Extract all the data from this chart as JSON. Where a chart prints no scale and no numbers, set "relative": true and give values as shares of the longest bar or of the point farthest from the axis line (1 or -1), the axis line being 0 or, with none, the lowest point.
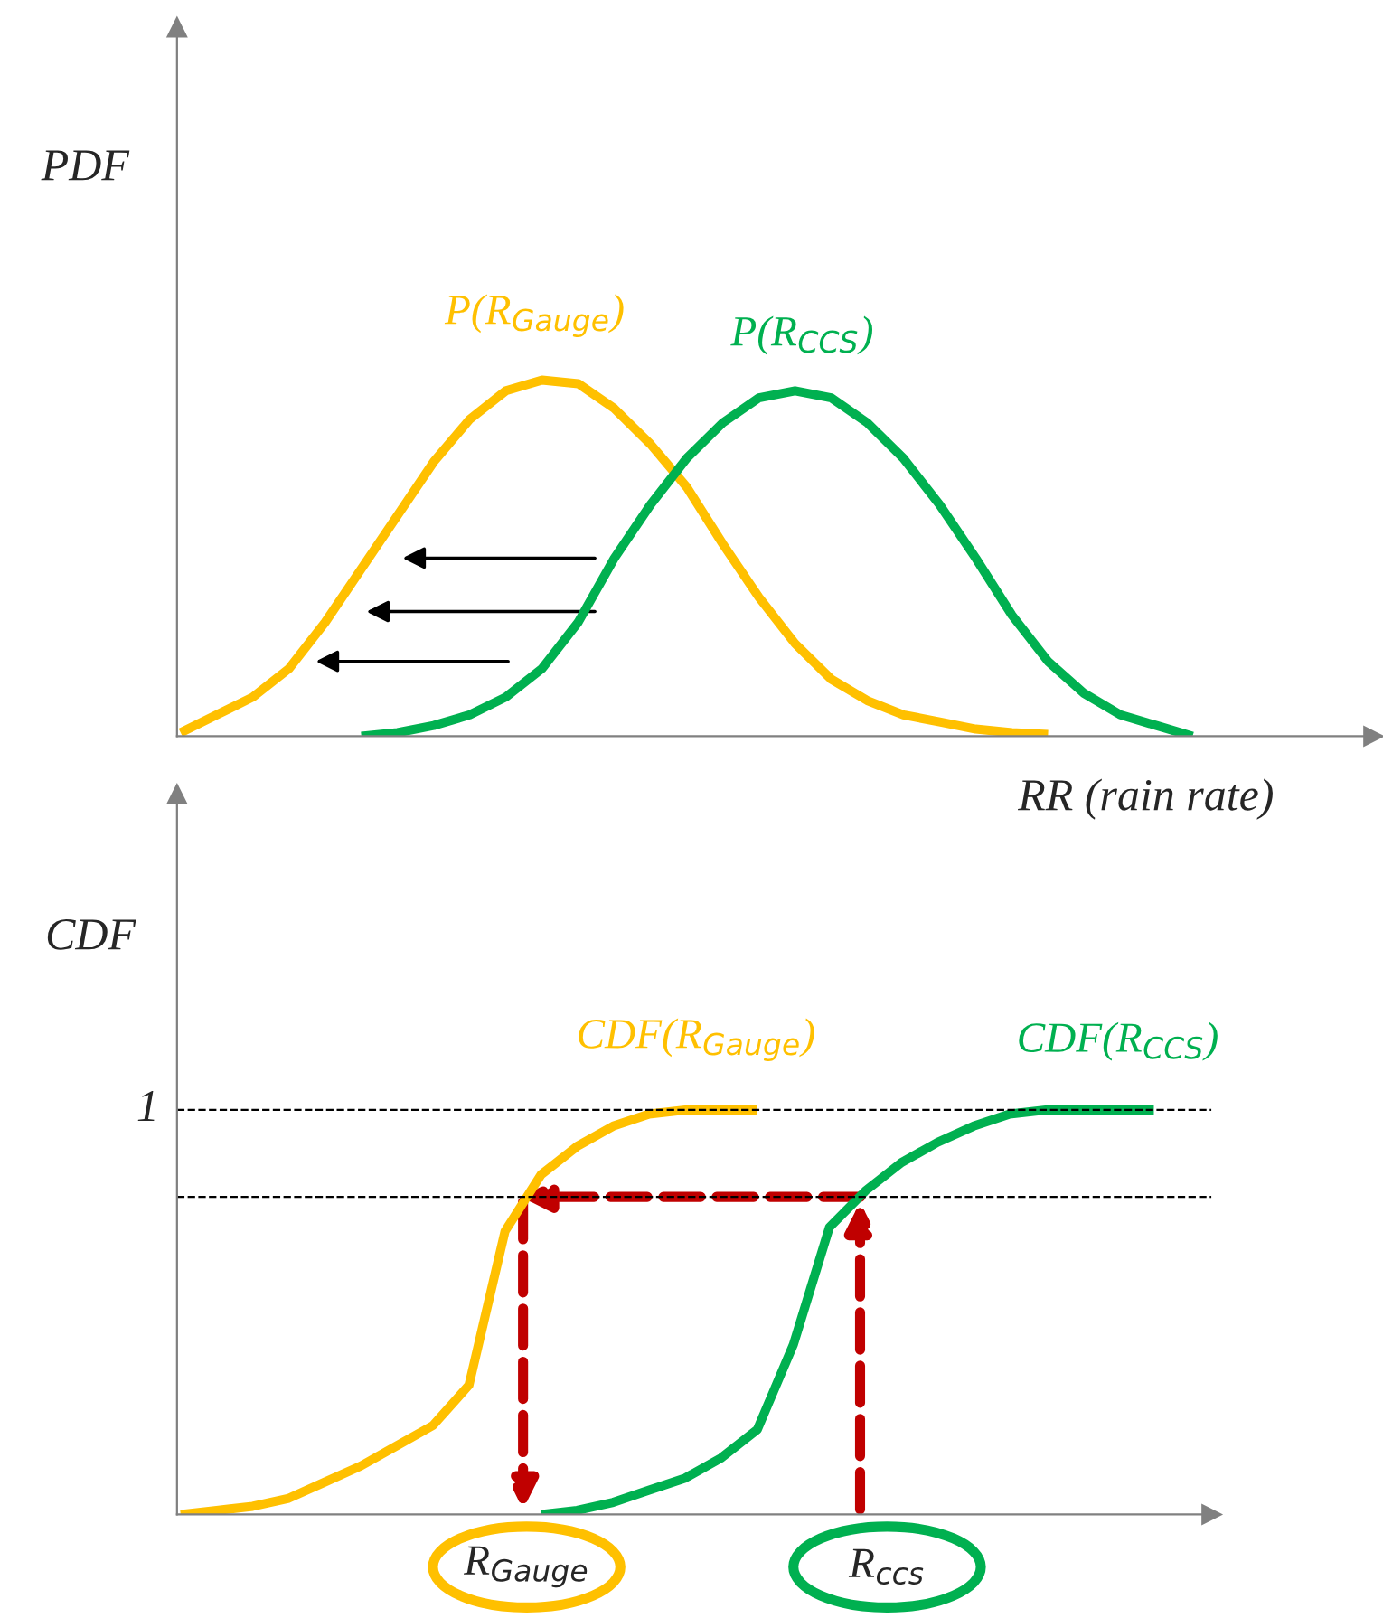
{
  "chart_data": [
    {
      "type": "line",
      "relative": true,
      "ylabel": "PDF",
      "xlabel": "RR (rain rate)",
      "legend": false,
      "line_style": "solid",
      "marker": "none",
      "categories": [
        null,
        null,
        null,
        null,
        null,
        null,
        null,
        null,
        null,
        null,
        null,
        null,
        null,
        null,
        null,
        null,
        null,
        null,
        null,
        null,
        null,
        null,
        null,
        null,
        null,
        null,
        null,
        null,
        null
      ],
      "series": [
        {
          "name": "P(R$_{Gauge}$)",
          "color": "#ffc000",
          "values": [
            0.01,
            0.06,
            0.11,
            0.19,
            0.32,
            0.47,
            0.62,
            0.77,
            0.89,
            0.97,
            1.0,
            0.99,
            0.92,
            0.82,
            0.7,
            0.54,
            0.39,
            0.26,
            0.16,
            0.1,
            0.06,
            0.04,
            0.02,
            0.01,
            0.005,
            null,
            null,
            null,
            null
          ]
        },
        {
          "name": "P(R$_{CCS}$)",
          "color": "#00b050",
          "values": [
            null,
            null,
            null,
            null,
            null,
            0.0,
            0.01,
            0.03,
            0.06,
            0.11,
            0.19,
            0.32,
            0.5,
            0.65,
            0.78,
            0.88,
            0.95,
            0.97,
            0.95,
            0.88,
            0.78,
            0.65,
            0.5,
            0.34,
            0.21,
            0.12,
            0.06,
            0.03,
            0.0
          ]
        }
      ]
    },
    {
      "type": "line",
      "relative": true,
      "ylabel": "CDF",
      "legend": false,
      "line_style": "solid",
      "marker": "none",
      "categories": [
        null,
        null,
        null,
        null,
        null,
        null,
        null,
        null,
        null,
        null,
        null,
        null,
        null,
        null,
        null,
        null,
        null,
        null,
        null,
        null,
        null,
        null,
        null,
        null,
        null,
        null,
        null,
        null,
        null
      ],
      "ref_lines": [
        {
          "axis": "y",
          "value": 1,
          "label": "1",
          "line_style": "dashed",
          "color": "#000000"
        },
        {
          "axis": "y",
          "value": 0.785,
          "label": null,
          "line_style": "dashed",
          "color": "#000000"
        }
      ],
      "annotations": [
        "R$_{Gauge}$",
        "R$_{ccs}$"
      ],
      "series": [
        {
          "name": "CDF(R$_{Gauge}$)",
          "color": "#ffc000",
          "values": [
            0.0,
            0.01,
            0.02,
            0.04,
            0.08,
            0.12,
            0.17,
            0.22,
            0.32,
            0.7,
            0.84,
            0.91,
            0.96,
            0.99,
            1.0,
            1.0,
            1.0,
            null,
            null,
            null,
            null,
            null,
            null,
            null,
            null,
            null,
            null,
            null,
            null
          ]
        },
        {
          "name": "CDF(R$_{CCS}$)",
          "color": "#00b050",
          "values": [
            null,
            null,
            null,
            null,
            null,
            null,
            null,
            null,
            null,
            null,
            0.0,
            0.01,
            0.03,
            0.06,
            0.09,
            0.14,
            0.21,
            0.42,
            0.71,
            0.8,
            0.87,
            0.92,
            0.96,
            0.99,
            1.0,
            1.0,
            1.0,
            1.0,
            null
          ]
        }
      ]
    }
  ]
}
